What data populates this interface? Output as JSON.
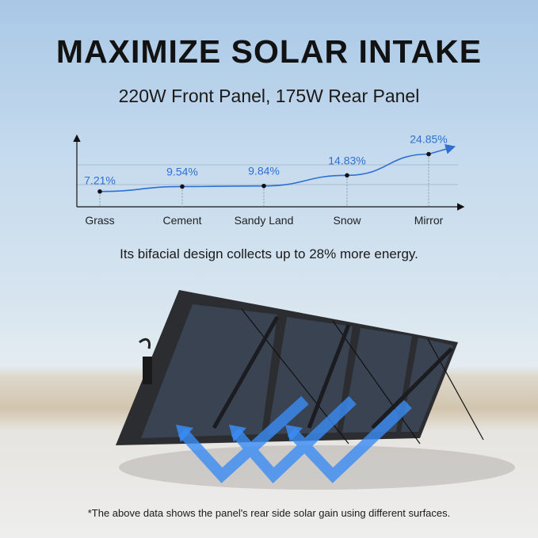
{
  "header": {
    "title": "MAXIMIZE SOLAR INTAKE",
    "subtitle": "220W Front Panel, 175W Rear Panel"
  },
  "tagline": "Its bifacial design collects up to 28% more energy.",
  "footnote": "*The above data shows the panel's rear side solar gain using different surfaces.",
  "colors": {
    "line": "#2f6fd1",
    "label": "#2f6fd1",
    "arrows": "#3a8cf5"
  },
  "chart_data": {
    "type": "line",
    "categories": [
      "Grass",
      "Cement",
      "Sandy Land",
      "Snow",
      "Mirror"
    ],
    "values": [
      7.21,
      9.54,
      9.84,
      14.83,
      24.85
    ],
    "data_labels": [
      "7.21%",
      "9.54%",
      "9.84%",
      "14.83%",
      "24.85%"
    ],
    "title": "",
    "xlabel": "",
    "ylabel": "",
    "ylim": [
      0,
      34
    ],
    "grid": "two horizontal gridlines",
    "legend": "none"
  }
}
